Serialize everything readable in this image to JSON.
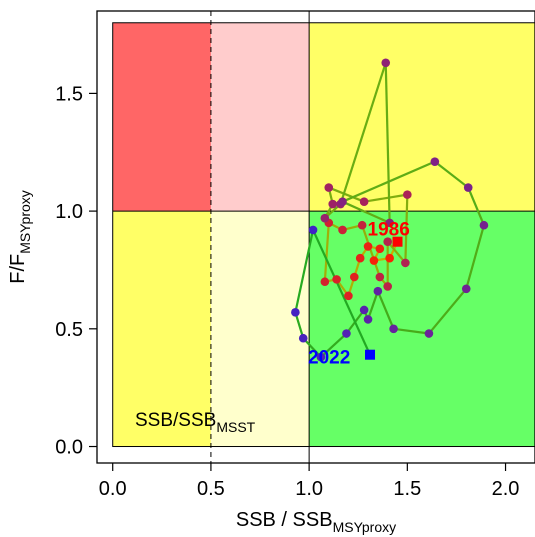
{
  "chart_data": {
    "type": "scatter",
    "xlabel": {
      "main": "SSB / SSB",
      "sub": "MSYproxy"
    },
    "ylabel": {
      "main": "F/F",
      "sub": "MSYproxy"
    },
    "xlim": [
      -0.08,
      2.15
    ],
    "ylim": [
      -0.07,
      1.85
    ],
    "x_ticks": [
      "0.0",
      "0.5",
      "1.0",
      "1.5",
      "2.0"
    ],
    "x_tick_values": [
      0.0,
      0.5,
      1.0,
      1.5,
      2.0
    ],
    "y_ticks": [
      "0.0",
      "0.5",
      "1.0",
      "1.5"
    ],
    "y_tick_values": [
      0.0,
      0.5,
      1.0,
      1.5
    ],
    "reference_lines": {
      "ssb_msst": 0.5,
      "ssb_msy": 1.0,
      "f_msy": 1.0
    },
    "zones": [
      {
        "x": [
          0.0,
          0.5
        ],
        "y": [
          1.0,
          1.8
        ],
        "color": "#ff6666"
      },
      {
        "x": [
          0.5,
          1.0
        ],
        "y": [
          1.0,
          1.8
        ],
        "color": "#ffcccc"
      },
      {
        "x": [
          1.0,
          2.15
        ],
        "y": [
          1.0,
          1.8
        ],
        "color": "#ffff66"
      },
      {
        "x": [
          0.0,
          0.5
        ],
        "y": [
          0.0,
          1.0
        ],
        "color": "#ffff66"
      },
      {
        "x": [
          0.5,
          1.0
        ],
        "y": [
          0.0,
          1.0
        ],
        "color": "#ffffcc"
      },
      {
        "x": [
          1.0,
          2.15
        ],
        "y": [
          0.0,
          1.0
        ],
        "color": "#66ff66"
      }
    ],
    "zone_label": {
      "main": "SSB/SSB",
      "sub": "MSST",
      "x": 0.12,
      "y": 0.08
    },
    "trajectory": [
      [
        1.45,
        0.87
      ],
      [
        1.41,
        0.8
      ],
      [
        1.33,
        0.79
      ],
      [
        1.36,
        0.84
      ],
      [
        1.3,
        0.85
      ],
      [
        1.26,
        0.8
      ],
      [
        1.23,
        0.72
      ],
      [
        1.2,
        0.64
      ],
      [
        1.14,
        0.71
      ],
      [
        1.08,
        0.7
      ],
      [
        1.1,
        0.95
      ],
      [
        1.17,
        0.92
      ],
      [
        1.27,
        0.94
      ],
      [
        1.36,
        0.72
      ],
      [
        1.4,
        0.68
      ],
      [
        1.4,
        0.87
      ],
      [
        1.49,
        0.78
      ],
      [
        1.5,
        1.07
      ],
      [
        1.28,
        1.04
      ],
      [
        1.1,
        1.1
      ],
      [
        1.12,
        1.03
      ],
      [
        1.08,
        0.97
      ],
      [
        1.16,
        1.03
      ],
      [
        1.39,
        1.63
      ],
      [
        1.41,
        0.95
      ],
      [
        1.17,
        1.04
      ],
      [
        1.64,
        1.21
      ],
      [
        1.81,
        1.1
      ],
      [
        1.89,
        0.94
      ],
      [
        1.8,
        0.67
      ],
      [
        1.61,
        0.48
      ],
      [
        1.43,
        0.5
      ],
      [
        1.35,
        0.66
      ],
      [
        1.3,
        0.54
      ],
      [
        1.28,
        0.58
      ],
      [
        1.19,
        0.48
      ],
      [
        1.06,
        0.38
      ],
      [
        0.97,
        0.46
      ],
      [
        0.93,
        0.57
      ],
      [
        1.02,
        0.92
      ],
      [
        1.31,
        0.39
      ]
    ],
    "start_point": {
      "label": "1986",
      "x": 1.45,
      "y": 0.87,
      "color": "#ff0000"
    },
    "end_point": {
      "label": "2022",
      "x": 1.31,
      "y": 0.39,
      "color": "#0000ff"
    },
    "colors": {
      "start": "#ff2200",
      "end": "#3a22cc",
      "line_start": "#c8b000",
      "line_end": "#22aa22"
    }
  }
}
